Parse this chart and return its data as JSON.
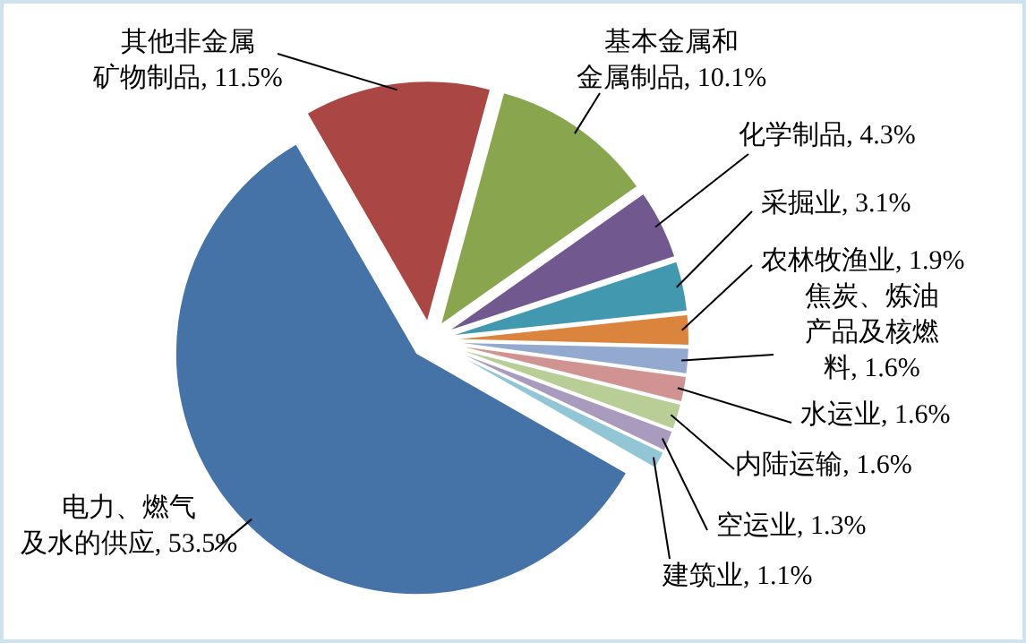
{
  "chart_data": {
    "type": "pie",
    "categories": [
      "其他非金属矿物制品",
      "基本金属和金属制品",
      "化学制品",
      "采掘业",
      "农林牧渔业",
      "焦炭、炼油产品及核燃料",
      "水运业",
      "内陆运输",
      "空运业",
      "建筑业",
      "电力、燃气及水的供应"
    ],
    "value_labels": [
      "11.5%",
      "10.1%",
      "4.3%",
      "3.1%",
      "1.9%",
      "1.6%",
      "1.6%",
      "1.6%",
      "1.3%",
      "1.1%",
      "53.5%"
    ],
    "values": [
      11.5,
      10.1,
      4.3,
      3.1,
      1.9,
      1.6,
      1.6,
      1.6,
      1.3,
      1.1,
      53.5
    ],
    "colors": [
      "#aa4643",
      "#89a54e",
      "#71588f",
      "#4198af",
      "#db843d",
      "#93a9cf",
      "#d19392",
      "#b9cd96",
      "#a99bbd",
      "#92c6d4",
      "#4572a7"
    ]
  }
}
